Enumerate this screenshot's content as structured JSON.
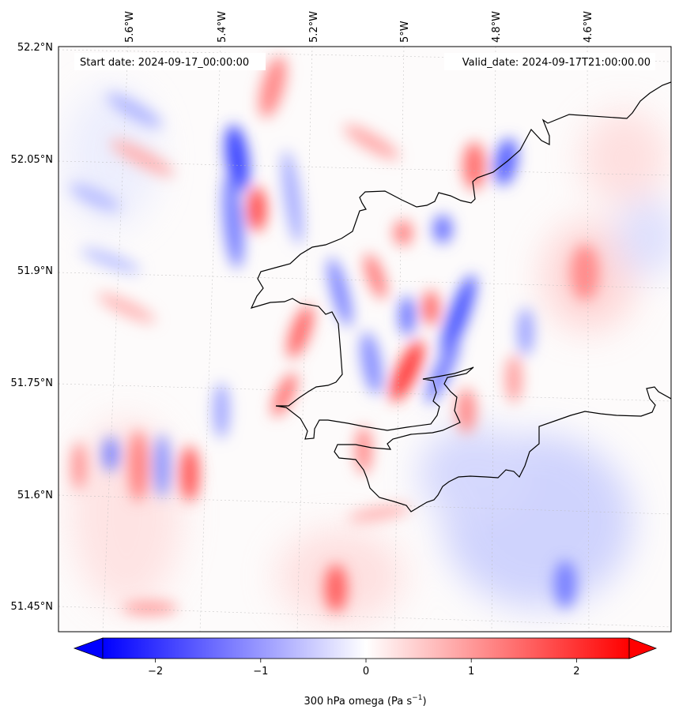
{
  "map": {
    "start_date_text": "Start date: 2024-09-17_00:00:00",
    "valid_date_text": "Valid_date: 2024-09-17T21:00:00.00",
    "lon_ticks": [
      "5.6°W",
      "5.4°W",
      "5.2°W",
      "5°W",
      "4.8°W",
      "4.6°W"
    ],
    "lat_ticks": [
      "52.2°N",
      "52.05°N",
      "51.9°N",
      "51.75°N",
      "51.6°N",
      "51.45°N"
    ],
    "colors": {
      "negative": "#0000ff",
      "zero": "#ffffff",
      "positive": "#ff0000",
      "coastline": "#000000",
      "gridline": "#bbbbbb"
    }
  },
  "colorbar": {
    "label_prefix": "300 hPa omega (Pa s",
    "label_exponent": "−1",
    "label_suffix": ")",
    "vmin": -2.5,
    "vmax": 2.5,
    "extend": "both",
    "tick_values": [
      -2,
      -1,
      0,
      1,
      2
    ],
    "tick_labels": [
      "−2",
      "−1",
      "0",
      "1",
      "2"
    ]
  }
}
